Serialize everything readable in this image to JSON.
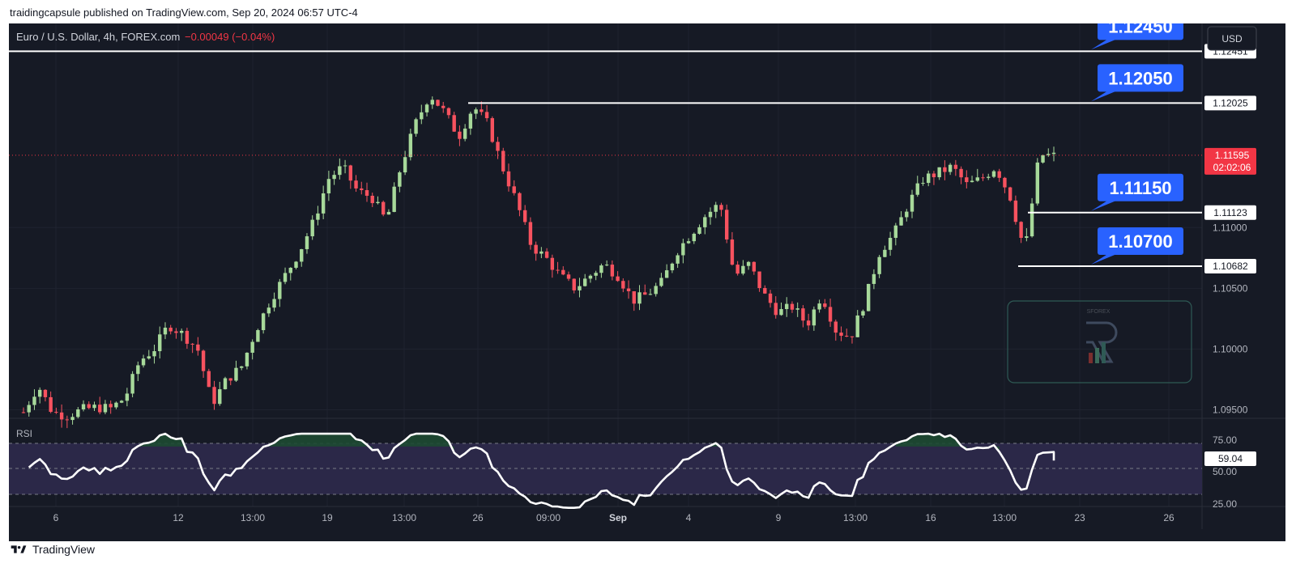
{
  "header": {
    "published_text": "traidingcapsule published on TradingView.com, Sep 20, 2024 06:57 UTC-4"
  },
  "chart_data": {
    "type": "candlestick",
    "title": "Euro / U.S. Dollar, 4h, FOREX.com",
    "change_text": "−0.00049 (−0.04%)",
    "currency_button": "USD",
    "y_ticks": [
      "1.11000",
      "1.10500",
      "1.10000",
      "1.09500"
    ],
    "ylim": [
      1.0943,
      1.1268
    ],
    "x_ticks": [
      "6",
      "12",
      "13:00",
      "19",
      "13:00",
      "26",
      "09:00",
      "Sep",
      "4",
      "9",
      "13:00",
      "16",
      "13:00",
      "23",
      "26"
    ],
    "current_price": {
      "value": 1.11595,
      "label": "1.11595",
      "countdown": "02:02:06"
    },
    "levels": [
      {
        "value": 1.12451,
        "axis_label": "1.12451",
        "callout": "1.12450"
      },
      {
        "value": 1.12025,
        "axis_label": "1.12025",
        "callout": "1.12050"
      },
      {
        "value": 1.11123,
        "axis_label": "1.11123",
        "callout": "1.11150"
      },
      {
        "value": 1.10682,
        "axis_label": "1.10682",
        "callout": "1.10700"
      }
    ],
    "rsi": {
      "label": "RSI",
      "value": 59.04,
      "value_label": "59.04",
      "ticks": [
        "75.00",
        "50.00",
        "25.00"
      ],
      "upper": 70,
      "lower": 30
    },
    "close_path": [
      1.0948,
      1.097,
      1.0948,
      1.0945,
      1.095,
      1.0952,
      1.0951,
      1.096,
      1.099,
      1.1,
      1.102,
      1.1012,
      1.1,
      1.0955,
      1.0975,
      1.0985,
      1.1015,
      1.104,
      1.106,
      1.108,
      1.1105,
      1.114,
      1.115,
      1.113,
      1.1125,
      1.1105,
      1.115,
      1.1185,
      1.121,
      1.1195,
      1.1175,
      1.12,
      1.1185,
      1.115,
      1.112,
      1.1085,
      1.1075,
      1.106,
      1.105,
      1.106,
      1.107,
      1.106,
      1.104,
      1.1045,
      1.1055,
      1.108,
      1.1095,
      1.111,
      1.112,
      1.106,
      1.107,
      1.1045,
      1.103,
      1.1035,
      1.102,
      1.1045,
      1.1015,
      1.101,
      1.104,
      1.108,
      1.1095,
      1.112,
      1.114,
      1.1145,
      1.115,
      1.1135,
      1.114,
      1.115,
      1.1125,
      1.108,
      1.116,
      1.1159
    ]
  },
  "watermark": {
    "visible": true
  },
  "footer": {
    "brand": "TradingView"
  }
}
